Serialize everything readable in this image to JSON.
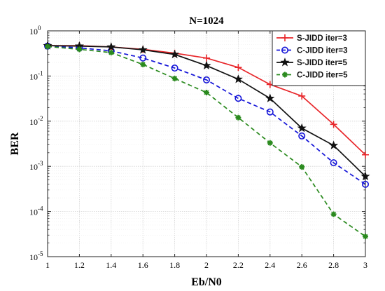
{
  "chart_data": {
    "type": "line",
    "title": "N=1024",
    "xlabel": "Eb/N0",
    "ylabel": "BER",
    "x": [
      1,
      1.2,
      1.4,
      1.6,
      1.8,
      2,
      2.2,
      2.4,
      2.6,
      2.8,
      3
    ],
    "xlim": [
      1,
      3
    ],
    "ylim": [
      1e-05,
      1
    ],
    "yscale": "log",
    "grid": true,
    "legend_position": "top-right",
    "x_ticks": [
      "1",
      "1.2",
      "1.4",
      "1.6",
      "1.8",
      "2",
      "2.2",
      "2.4",
      "2.6",
      "2.8",
      "3"
    ],
    "y_ticks": [
      {
        "base": "10",
        "exp": "0"
      },
      {
        "base": "10",
        "exp": "-1"
      },
      {
        "base": "10",
        "exp": "-2"
      },
      {
        "base": "10",
        "exp": "-3"
      },
      {
        "base": "10",
        "exp": "-4"
      },
      {
        "base": "10",
        "exp": "-5"
      }
    ],
    "series": [
      {
        "name": "S-JIDD iter=3",
        "color": "#e8262a",
        "marker": "plus",
        "dash": "solid",
        "values": [
          0.47,
          0.47,
          0.44,
          0.39,
          0.32,
          0.25,
          0.155,
          0.065,
          0.036,
          0.0085,
          0.0018
        ]
      },
      {
        "name": "C-JIDD iter=3",
        "color": "#1515d8",
        "marker": "circle",
        "dash": "dashed",
        "values": [
          0.46,
          0.42,
          0.36,
          0.25,
          0.15,
          0.082,
          0.032,
          0.016,
          0.0047,
          0.0012,
          0.0004
        ]
      },
      {
        "name": "S-JIDD iter=5",
        "color": "#111111",
        "marker": "star",
        "dash": "solid",
        "values": [
          0.47,
          0.46,
          0.44,
          0.38,
          0.3,
          0.17,
          0.085,
          0.032,
          0.007,
          0.0029,
          0.0006
        ]
      },
      {
        "name": "C-JIDD iter=5",
        "color": "#2a8a1e",
        "marker": "asterisk",
        "dash": "dashed",
        "values": [
          0.45,
          0.39,
          0.33,
          0.18,
          0.088,
          0.043,
          0.012,
          0.0033,
          0.00097,
          8.7e-05,
          2.8e-05
        ]
      }
    ]
  }
}
